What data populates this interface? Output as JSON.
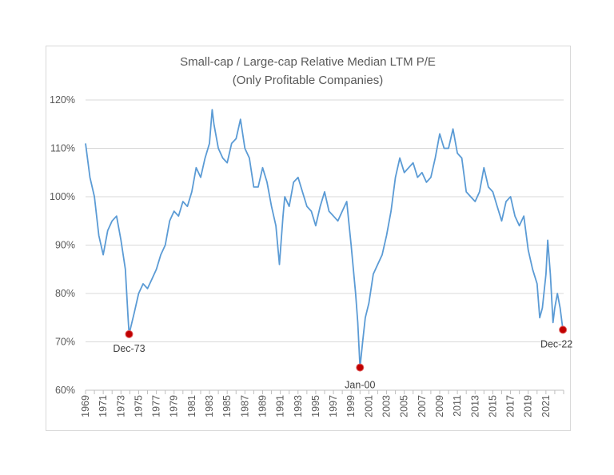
{
  "chart_data": {
    "type": "line",
    "title": "Small-cap / Large-cap Relative Median LTM P/E",
    "subtitle": "(Only Profitable Companies)",
    "xlabel": "",
    "ylabel": "",
    "xlim": [
      1969,
      2023
    ],
    "ylim": [
      60,
      120
    ],
    "y_unit": "%",
    "y_ticks": [
      "60%",
      "70%",
      "80%",
      "90%",
      "100%",
      "110%",
      "120%"
    ],
    "x_ticks": [
      "1969",
      "1971",
      "1973",
      "1975",
      "1977",
      "1979",
      "1981",
      "1983",
      "1985",
      "1987",
      "1989",
      "1991",
      "1993",
      "1995",
      "1997",
      "1999",
      "2001",
      "2003",
      "2005",
      "2007",
      "2009",
      "2011",
      "2013",
      "2015",
      "2017",
      "2019",
      "2021"
    ],
    "grid": "horizontal",
    "line_color": "#5b9bd5",
    "marker_color": "#c00000",
    "series": [
      {
        "x": [
          1969.0,
          1969.5,
          1970.0,
          1970.5,
          1971.0,
          1971.5,
          1972.0,
          1972.5,
          1973.0,
          1973.5,
          1973.8,
          1973.92,
          1974.5,
          1975.0,
          1975.5,
          1976.0,
          1976.5,
          1977.0,
          1977.5,
          1978.0,
          1978.5,
          1979.0,
          1979.5,
          1980.0,
          1980.5,
          1981.0,
          1981.5,
          1982.0,
          1982.5,
          1983.0,
          1983.3,
          1983.5,
          1984.0,
          1984.5,
          1985.0,
          1985.5,
          1986.0,
          1986.5,
          1987.0,
          1987.5,
          1988.0,
          1988.5,
          1989.0,
          1989.5,
          1990.0,
          1990.5,
          1990.9,
          1991.3,
          1991.5,
          1992.0,
          1992.5,
          1993.0,
          1993.5,
          1994.0,
          1994.5,
          1995.0,
          1995.5,
          1996.0,
          1996.5,
          1997.0,
          1997.5,
          1998.0,
          1998.5,
          1999.0,
          1999.5,
          1999.75,
          2000.0,
          2000.3,
          2000.6,
          2001.0,
          2001.5,
          2002.0,
          2002.5,
          2003.0,
          2003.5,
          2004.0,
          2004.5,
          2005.0,
          2005.5,
          2006.0,
          2006.5,
          2007.0,
          2007.5,
          2008.0,
          2008.5,
          2009.0,
          2009.5,
          2010.0,
          2010.5,
          2011.0,
          2011.5,
          2012.0,
          2012.5,
          2013.0,
          2013.5,
          2014.0,
          2014.5,
          2015.0,
          2015.5,
          2016.0,
          2016.5,
          2017.0,
          2017.5,
          2018.0,
          2018.5,
          2019.0,
          2019.5,
          2020.0,
          2020.3,
          2020.6,
          2021.0,
          2021.2,
          2021.5,
          2021.8,
          2022.0,
          2022.3,
          2022.6,
          2022.92
        ],
        "y": [
          111,
          104,
          100,
          92,
          88,
          93,
          95,
          96,
          91,
          85,
          75,
          71.6,
          76,
          80,
          82,
          81,
          83,
          85,
          88,
          90,
          95,
          97,
          96,
          99,
          98,
          101,
          106,
          104,
          108,
          111,
          118,
          115,
          110,
          108,
          107,
          111,
          112,
          116,
          110,
          108,
          102,
          102,
          106,
          103,
          98,
          94,
          86,
          96,
          100,
          98,
          103,
          104,
          101,
          98,
          97,
          94,
          98,
          101,
          97,
          96,
          95,
          97,
          99,
          90,
          80,
          74,
          64.7,
          70,
          75,
          78,
          84,
          86,
          88,
          92,
          97,
          104,
          108,
          105,
          106,
          107,
          104,
          105,
          103,
          104,
          108,
          113,
          110,
          110,
          114,
          109,
          108,
          101,
          100,
          99,
          101,
          106,
          102,
          101,
          98,
          95,
          99,
          100,
          96,
          94,
          96,
          89,
          85,
          82,
          75,
          77,
          84,
          91,
          84,
          74,
          77,
          80,
          77,
          72.5
        ]
      }
    ],
    "annotations": [
      {
        "label": "Dec-73",
        "x": 1973.92,
        "y": 71.6
      },
      {
        "label": "Jan-00",
        "x": 2000.0,
        "y": 64.7
      },
      {
        "label": "Dec-22",
        "x": 2022.92,
        "y": 72.5
      }
    ]
  }
}
